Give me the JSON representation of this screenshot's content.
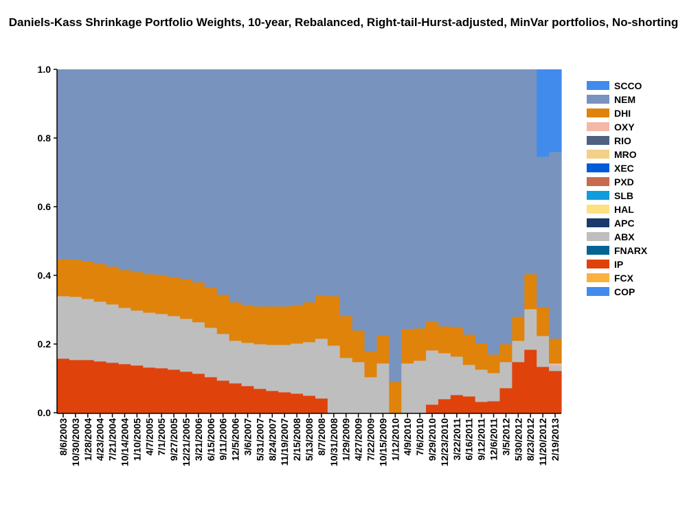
{
  "chart_data": {
    "type": "area",
    "stacked": true,
    "step": true,
    "title": "Daniels-Kass Shrinkage Portfolio Weights, 10-year, Rebalanced, Right-tail-Hurst-adjusted, MinVar portfolios, No-shorting",
    "xlabel": "",
    "ylabel": "",
    "ylim": [
      0,
      1
    ],
    "yticks": [
      "0.0",
      "0.2",
      "0.4",
      "0.6",
      "0.8",
      "1.0"
    ],
    "legend_position": "right",
    "categories": [
      "8/6/2003",
      "10/30/2003",
      "1/28/2004",
      "4/23/2004",
      "7/21/2004",
      "10/14/2004",
      "1/10/2005",
      "4/7/2005",
      "7/1/2005",
      "9/27/2005",
      "12/21/2005",
      "3/21/2006",
      "6/15/2006",
      "9/11/2006",
      "12/5/2006",
      "3/6/2007",
      "5/31/2007",
      "8/24/2007",
      "11/19/2007",
      "2/15/2008",
      "5/13/2008",
      "8/7/2008",
      "10/31/2008",
      "1/29/2009",
      "4/27/2009",
      "7/22/2009",
      "10/15/2009",
      "1/12/2010",
      "4/9/2010",
      "7/6/2010",
      "9/29/2010",
      "12/23/2010",
      "3/22/2011",
      "6/16/2011",
      "9/12/2011",
      "12/6/2011",
      "3/5/2012",
      "5/30/2012",
      "8/23/2012",
      "11/20/2012",
      "2/19/2013"
    ],
    "legend": [
      {
        "name": "SCCO",
        "color": "#418BED"
      },
      {
        "name": "NEM",
        "color": "#7893BE"
      },
      {
        "name": "DHI",
        "color": "#E0830A"
      },
      {
        "name": "OXY",
        "color": "#F2B8A8"
      },
      {
        "name": "RIO",
        "color": "#4F6180"
      },
      {
        "name": "MRO",
        "color": "#F2D088"
      },
      {
        "name": "XEC",
        "color": "#005BD9"
      },
      {
        "name": "PXD",
        "color": "#C76A4E"
      },
      {
        "name": "SLB",
        "color": "#119CDD"
      },
      {
        "name": "HAL",
        "color": "#FDE080"
      },
      {
        "name": "APC",
        "color": "#1B3A6B"
      },
      {
        "name": "ABX",
        "color": "#BEBEBE"
      },
      {
        "name": "FNARX",
        "color": "#056494"
      },
      {
        "name": "IP",
        "color": "#E0420C"
      },
      {
        "name": "FCX",
        "color": "#FAB140"
      },
      {
        "name": "COP",
        "color": "#418BED"
      }
    ],
    "series": [
      {
        "name": "IP",
        "color": "#E0420C",
        "values": [
          0.158,
          0.154,
          0.154,
          0.15,
          0.146,
          0.142,
          0.138,
          0.132,
          0.13,
          0.126,
          0.12,
          0.114,
          0.104,
          0.094,
          0.086,
          0.078,
          0.07,
          0.064,
          0.06,
          0.056,
          0.05,
          0.042,
          0,
          0,
          0,
          0,
          0,
          0,
          0,
          0,
          0.024,
          0.04,
          0.052,
          0.048,
          0.032,
          0.034,
          0.072,
          0.148,
          0.184,
          0.134,
          0.122
        ]
      },
      {
        "name": "ABX",
        "color": "#BEBEBE",
        "values": [
          0.182,
          0.184,
          0.178,
          0.174,
          0.17,
          0.164,
          0.16,
          0.16,
          0.158,
          0.156,
          0.154,
          0.15,
          0.144,
          0.136,
          0.124,
          0.126,
          0.13,
          0.134,
          0.138,
          0.146,
          0.156,
          0.174,
          0.196,
          0.16,
          0.148,
          0.104,
          0.144,
          0,
          0.144,
          0.152,
          0.158,
          0.134,
          0.112,
          0.092,
          0.094,
          0.082,
          0.076,
          0.062,
          0.118,
          0.09,
          0.016
        ]
      },
      {
        "name": "OXY",
        "color": "#F2B8A8",
        "values": [
          0,
          0,
          0,
          0,
          0,
          0,
          0,
          0,
          0,
          0,
          0,
          0,
          0,
          0,
          0,
          0,
          0,
          0,
          0,
          0,
          0,
          0,
          0,
          0,
          0,
          0,
          0,
          0,
          0,
          0,
          0,
          0,
          0,
          0,
          0,
          0,
          0,
          0,
          0,
          0,
          0.006
        ]
      },
      {
        "name": "DHI",
        "color": "#E0830A",
        "values": [
          0.108,
          0.108,
          0.11,
          0.11,
          0.11,
          0.11,
          0.112,
          0.112,
          0.114,
          0.114,
          0.116,
          0.116,
          0.116,
          0.114,
          0.112,
          0.11,
          0.11,
          0.112,
          0.112,
          0.112,
          0.116,
          0.126,
          0.144,
          0.122,
          0.092,
          0.074,
          0.082,
          0.09,
          0.1,
          0.094,
          0.084,
          0.078,
          0.086,
          0.088,
          0.076,
          0.054,
          0.052,
          0.07,
          0.102,
          0.084,
          0.072
        ]
      },
      {
        "name": "NEM",
        "color": "#7893BE",
        "values": [
          0.552,
          0.554,
          0.558,
          0.566,
          0.574,
          0.584,
          0.59,
          0.596,
          0.598,
          0.604,
          0.61,
          0.62,
          0.636,
          0.656,
          0.678,
          0.686,
          0.69,
          0.69,
          0.69,
          0.686,
          0.678,
          0.658,
          0.66,
          0.718,
          0.76,
          0.822,
          0.774,
          0.91,
          0.756,
          0.754,
          0.734,
          0.748,
          0.75,
          0.772,
          0.798,
          0.83,
          0.8,
          0.72,
          0.596,
          0.438,
          0.544
        ]
      },
      {
        "name": "SCCO",
        "color": "#418BED",
        "values": [
          0,
          0,
          0,
          0,
          0,
          0,
          0,
          0,
          0,
          0,
          0,
          0,
          0,
          0,
          0,
          0,
          0,
          0,
          0,
          0,
          0,
          0,
          0,
          0,
          0,
          0,
          0,
          0,
          0,
          0,
          0,
          0,
          0,
          0,
          0,
          0,
          0,
          0,
          0,
          0.254,
          0.24
        ]
      }
    ]
  }
}
